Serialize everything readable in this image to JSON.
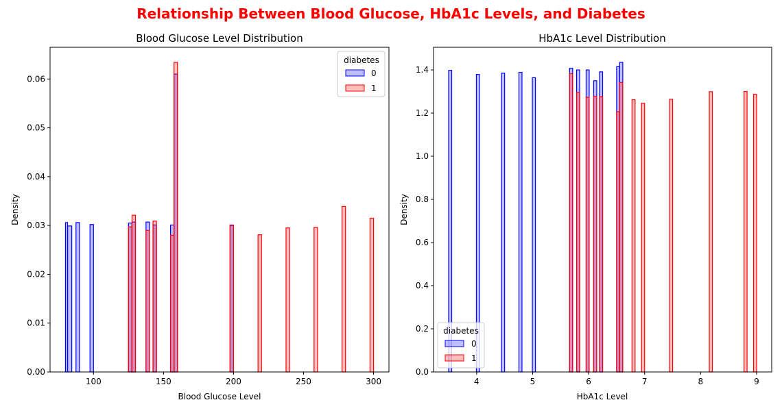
{
  "suptitle": "Relationship Between Blood Glucose, HbA1c Levels, and Diabetes",
  "colors": {
    "class0": "#0000ff",
    "class1": "#ff0000",
    "title": "#ff0000"
  },
  "chart_data": [
    {
      "type": "histogram",
      "title": "Blood Glucose Level Distribution",
      "xlabel": "Blood Glucose Level",
      "ylabel": "Density",
      "xlim": [
        69,
        311
      ],
      "ylim": [
        0,
        0.0665
      ],
      "xticks": [
        100,
        150,
        200,
        250,
        300
      ],
      "xtick_labels": [
        "100",
        "150",
        "200",
        "250",
        "300"
      ],
      "yticks": [
        0,
        0.01,
        0.02,
        0.03,
        0.04,
        0.05,
        0.06
      ],
      "ytick_labels": [
        "0.00",
        "0.01",
        "0.02",
        "0.03",
        "0.04",
        "0.05",
        "0.06"
      ],
      "legend": {
        "title": "diabetes",
        "position": "top-right",
        "entries": [
          "0",
          "1"
        ]
      },
      "series": [
        {
          "name": "0",
          "color": "#0000ff",
          "bins": [
            {
              "x0": 80,
              "x1": 81.5,
              "y": 0.0306
            },
            {
              "x0": 81.5,
              "x1": 84.5,
              "y": 0.0299
            },
            {
              "x0": 87.5,
              "x1": 90,
              "y": 0.0306
            },
            {
              "x0": 97.5,
              "x1": 100,
              "y": 0.0302
            },
            {
              "x0": 125,
              "x1": 127.5,
              "y": 0.0305
            },
            {
              "x0": 127.5,
              "x1": 130,
              "y": 0.0307
            },
            {
              "x0": 137.5,
              "x1": 140,
              "y": 0.0307
            },
            {
              "x0": 142.5,
              "x1": 145,
              "y": 0.0301
            },
            {
              "x0": 155,
              "x1": 157.5,
              "y": 0.0301
            },
            {
              "x0": 157.5,
              "x1": 160,
              "y": 0.061
            },
            {
              "x0": 197.5,
              "x1": 200,
              "y": 0.0301
            }
          ]
        },
        {
          "name": "1",
          "color": "#ff0000",
          "bins": [
            {
              "x0": 125,
              "x1": 127.5,
              "y": 0.0297
            },
            {
              "x0": 127.5,
              "x1": 130,
              "y": 0.0321
            },
            {
              "x0": 137.5,
              "x1": 140,
              "y": 0.029
            },
            {
              "x0": 142.5,
              "x1": 145,
              "y": 0.0309
            },
            {
              "x0": 155,
              "x1": 157.5,
              "y": 0.028
            },
            {
              "x0": 157.5,
              "x1": 160,
              "y": 0.0634
            },
            {
              "x0": 197.5,
              "x1": 200,
              "y": 0.03
            },
            {
              "x0": 217.5,
              "x1": 220,
              "y": 0.0281
            },
            {
              "x0": 237.5,
              "x1": 240,
              "y": 0.0295
            },
            {
              "x0": 257.5,
              "x1": 260,
              "y": 0.0296
            },
            {
              "x0": 277.5,
              "x1": 280,
              "y": 0.0339
            },
            {
              "x0": 297.5,
              "x1": 300,
              "y": 0.0315
            }
          ]
        }
      ]
    },
    {
      "type": "histogram",
      "title": "HbA1c Level Distribution",
      "xlabel": "HbA1c Level",
      "ylabel": "Density",
      "xlim": [
        3.23,
        9.27
      ],
      "ylim": [
        0,
        1.505
      ],
      "xticks": [
        4,
        5,
        6,
        7,
        8,
        9
      ],
      "xtick_labels": [
        "4",
        "5",
        "6",
        "7",
        "8",
        "9"
      ],
      "yticks": [
        0,
        0.2,
        0.4,
        0.6,
        0.8,
        1.0,
        1.2,
        1.4
      ],
      "ytick_labels": [
        "0.0",
        "0.2",
        "0.4",
        "0.6",
        "0.8",
        "1.0",
        "1.2",
        "1.4"
      ],
      "legend": {
        "title": "diabetes",
        "position": "bottom-left",
        "entries": [
          "0",
          "1"
        ]
      },
      "series": [
        {
          "name": "0",
          "color": "#0000ff",
          "bins": [
            {
              "x0": 3.5,
              "x1": 3.555,
              "y": 1.398
            },
            {
              "x0": 3.995,
              "x1": 4.05,
              "y": 1.379
            },
            {
              "x0": 4.445,
              "x1": 4.5,
              "y": 1.385
            },
            {
              "x0": 4.755,
              "x1": 4.81,
              "y": 1.389
            },
            {
              "x0": 4.995,
              "x1": 5.05,
              "y": 1.364
            },
            {
              "x0": 5.66,
              "x1": 5.715,
              "y": 1.408
            },
            {
              "x0": 5.785,
              "x1": 5.84,
              "y": 1.4
            },
            {
              "x0": 5.955,
              "x1": 6.01,
              "y": 1.4
            },
            {
              "x0": 6.09,
              "x1": 6.145,
              "y": 1.35
            },
            {
              "x0": 6.195,
              "x1": 6.25,
              "y": 1.391
            },
            {
              "x0": 6.5,
              "x1": 6.555,
              "y": 1.415
            },
            {
              "x0": 6.555,
              "x1": 6.61,
              "y": 1.435
            }
          ]
        },
        {
          "name": "1",
          "color": "#ff0000",
          "bins": [
            {
              "x0": 5.66,
              "x1": 5.715,
              "y": 1.383
            },
            {
              "x0": 5.785,
              "x1": 5.84,
              "y": 1.295
            },
            {
              "x0": 5.955,
              "x1": 6.01,
              "y": 1.273
            },
            {
              "x0": 6.09,
              "x1": 6.145,
              "y": 1.277
            },
            {
              "x0": 6.195,
              "x1": 6.25,
              "y": 1.276
            },
            {
              "x0": 6.5,
              "x1": 6.555,
              "y": 1.206
            },
            {
              "x0": 6.555,
              "x1": 6.61,
              "y": 1.342
            },
            {
              "x0": 6.775,
              "x1": 6.83,
              "y": 1.262
            },
            {
              "x0": 6.945,
              "x1": 7.0,
              "y": 1.246
            },
            {
              "x0": 7.445,
              "x1": 7.5,
              "y": 1.264
            },
            {
              "x0": 8.155,
              "x1": 8.21,
              "y": 1.299
            },
            {
              "x0": 8.775,
              "x1": 8.83,
              "y": 1.3
            },
            {
              "x0": 8.945,
              "x1": 9.0,
              "y": 1.287
            }
          ]
        }
      ]
    }
  ]
}
